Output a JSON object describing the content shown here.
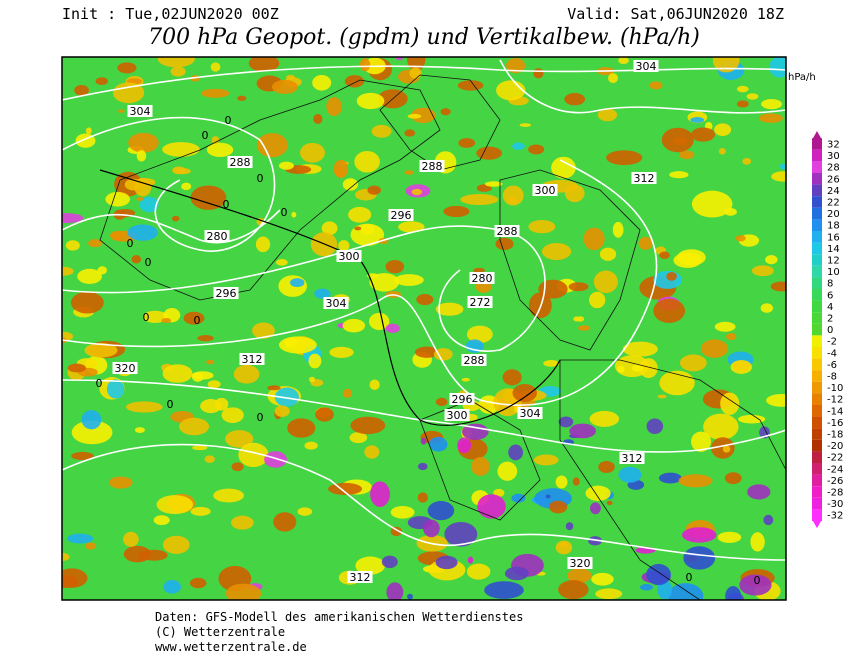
{
  "header": {
    "init": "Init : Tue,02JUN2020 00Z",
    "valid": "Valid: Sat,06JUN2020 18Z",
    "title": "700 hPa Geopot. (gpdm) und Vertikalbew. (hPa/h)"
  },
  "colorbar": {
    "unit": "hPa/h",
    "ticks": [
      32,
      30,
      28,
      26,
      24,
      22,
      20,
      18,
      16,
      14,
      12,
      10,
      8,
      6,
      4,
      2,
      0,
      -2,
      -4,
      -6,
      -8,
      -10,
      -12,
      -14,
      -16,
      -18,
      -20,
      -22,
      -24,
      -26,
      -28,
      -30,
      -32
    ],
    "colors": [
      "#b01890",
      "#d020c0",
      "#e040e0",
      "#a030c0",
      "#6040c0",
      "#3050d0",
      "#2070e0",
      "#2090f0",
      "#20b0f0",
      "#20c8e8",
      "#20d0c8",
      "#30d8a8",
      "#30d880",
      "#38d858",
      "#40d840",
      "#48d838",
      "#50d830",
      "#f0f000",
      "#f8e000",
      "#f8c800",
      "#f8b000",
      "#f09800",
      "#e88000",
      "#e06800",
      "#d05000",
      "#c04000",
      "#b03000",
      "#c02040",
      "#d02070",
      "#e020a0",
      "#f020c8",
      "#f020e0",
      "#ff30ff"
    ]
  },
  "contour_labels": [
    "304",
    "288",
    "280",
    "296",
    "312",
    "320",
    "300",
    "304",
    "288",
    "296",
    "288",
    "280",
    "272",
    "288",
    "296",
    "300",
    "304",
    "300",
    "312",
    "304",
    "312",
    "320",
    "312",
    "0",
    "0",
    "0",
    "0",
    "0",
    "0",
    "0",
    "0",
    "0",
    "0",
    "0",
    "0",
    "0",
    "0"
  ],
  "footer": {
    "lines": [
      "Daten: GFS-Modell des amerikanischen Wetterdienstes",
      "(C) Wetterzentrale",
      "www.wetterzentrale.de"
    ]
  }
}
